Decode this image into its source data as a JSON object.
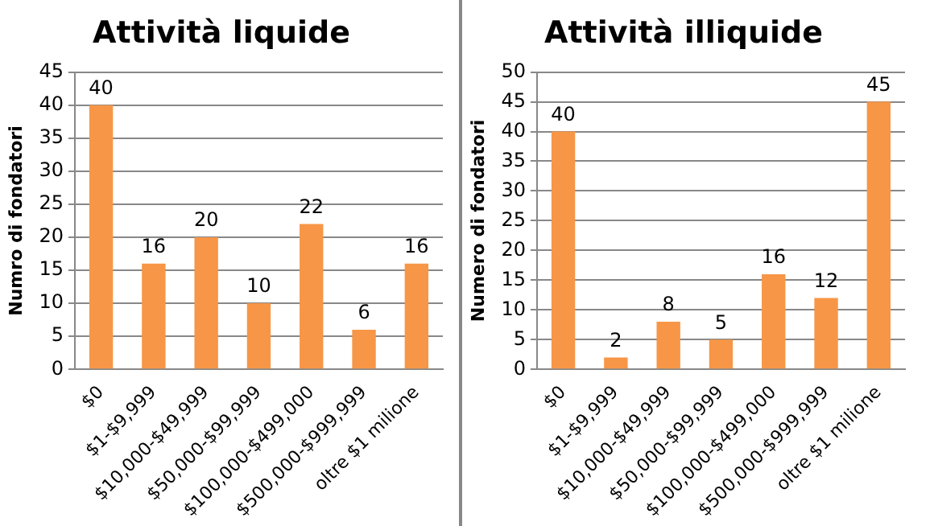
{
  "chart_data": [
    {
      "type": "bar",
      "title": "Attività liquide",
      "ylabel": "Numro di fondatori",
      "categories": [
        "$0",
        "$1-$9,999",
        "$10,000-$49,999",
        "$50,000-$99,999",
        "$100,000-$499,000",
        "$500,000-$999,999",
        "oltre $1 milione"
      ],
      "values": [
        40,
        16,
        20,
        10,
        22,
        6,
        16
      ],
      "color": "#f79646",
      "ylim": [
        0,
        45
      ],
      "yticks": [
        0,
        5,
        10,
        15,
        20,
        25,
        30,
        35,
        40,
        45
      ],
      "grid": "y",
      "data_labels": true
    },
    {
      "type": "bar",
      "title": "Attività illiquide",
      "ylabel": "Numero di fondatori",
      "categories": [
        "$0",
        "$1-$9,999",
        "$10,000-$49,999",
        "$50,000-$99,999",
        "$100,000-$499,000",
        "$500,000-$999,999",
        "oltre $1 milione"
      ],
      "values": [
        40,
        2,
        8,
        5,
        16,
        12,
        45
      ],
      "color": "#f79646",
      "ylim": [
        0,
        50
      ],
      "yticks": [
        0,
        5,
        10,
        15,
        20,
        25,
        30,
        35,
        40,
        45,
        50
      ],
      "grid": "y",
      "data_labels": true
    }
  ]
}
